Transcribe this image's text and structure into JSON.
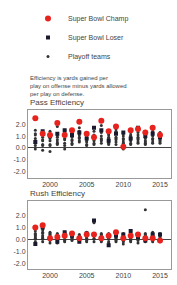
{
  "chart_data": [
    {
      "type": "scatter",
      "title": "Pass Efficiency",
      "legend": "top",
      "annotations": [
        "Efficiency is yards gained per\nplay on offense minus yards allowed\nper play on defense."
      ],
      "xlim": [
        1997.0,
        2016.5
      ],
      "xticks": [
        2000,
        2005,
        2010,
        2015
      ],
      "ylim": [
        -2.5,
        3.2
      ],
      "yticks": [
        {
          "value": -2.0,
          "label": "-2.0"
        },
        {
          "value": -1.0,
          "label": "-1.0"
        },
        {
          "value": 0.0,
          "label": "0.0"
        },
        {
          "value": 1.0,
          "label": "1.0"
        },
        {
          "value": 2.0,
          "label": "2.0"
        }
      ],
      "grid": false,
      "series": [
        {
          "name": "Playoff teams",
          "color": "#333333",
          "marker": "circle",
          "x": [
            1998,
            1998,
            1998,
            1998,
            1998,
            1998,
            1998,
            1998,
            1998,
            1999,
            1999,
            1999,
            1999,
            1999,
            1999,
            1999,
            1999,
            2000,
            2000,
            2000,
            2000,
            2000,
            2000,
            2000,
            2000,
            2001,
            2001,
            2001,
            2001,
            2001,
            2001,
            2001,
            2001,
            2002,
            2002,
            2002,
            2002,
            2002,
            2002,
            2002,
            2002,
            2003,
            2003,
            2003,
            2003,
            2003,
            2003,
            2003,
            2004,
            2004,
            2004,
            2004,
            2004,
            2004,
            2004,
            2004,
            2005,
            2005,
            2005,
            2005,
            2005,
            2005,
            2005,
            2005,
            2006,
            2006,
            2006,
            2006,
            2006,
            2006,
            2006,
            2007,
            2007,
            2007,
            2007,
            2007,
            2007,
            2007,
            2007,
            2008,
            2008,
            2008,
            2008,
            2008,
            2008,
            2008,
            2008,
            2009,
            2009,
            2009,
            2009,
            2009,
            2009,
            2009,
            2009,
            2010,
            2010,
            2010,
            2010,
            2010,
            2010,
            2010,
            2010,
            2011,
            2011,
            2011,
            2011,
            2011,
            2011,
            2011,
            2011,
            2012,
            2012,
            2012,
            2012,
            2012,
            2012,
            2012,
            2012,
            2013,
            2013,
            2013,
            2013,
            2013,
            2013,
            2013,
            2013,
            2014,
            2014,
            2014,
            2014,
            2014,
            2014,
            2014,
            2015,
            2015,
            2015,
            2015,
            2015,
            2015,
            2015,
            2015
          ],
          "values": [
            -0.1,
            0.2,
            0.4,
            0.5,
            0.6,
            0.8,
            1.1,
            1.2,
            1.5,
            -0.2,
            0.2,
            0.3,
            0.6,
            0.7,
            0.9,
            1.1,
            1.3,
            -0.3,
            0.2,
            0.3,
            0.6,
            0.8,
            0.9,
            1.1,
            1.4,
            0.3,
            0.4,
            0.5,
            0.7,
            0.9,
            1.0,
            1.2,
            1.8,
            -0.1,
            0.2,
            0.4,
            0.7,
            0.8,
            1.0,
            1.3,
            1.5,
            0.3,
            0.4,
            0.6,
            0.7,
            0.9,
            1.1,
            1.3,
            0.5,
            0.6,
            0.8,
            0.9,
            1.1,
            1.2,
            1.4,
            1.7,
            0.2,
            0.3,
            0.5,
            0.6,
            0.8,
            0.9,
            1.0,
            1.1,
            0.3,
            0.4,
            0.6,
            0.7,
            0.9,
            1.1,
            1.4,
            0.4,
            0.6,
            0.7,
            0.8,
            1.0,
            1.3,
            1.5,
            1.9,
            0.3,
            0.4,
            0.5,
            0.7,
            0.8,
            0.9,
            1.1,
            1.2,
            0.3,
            0.5,
            0.7,
            0.8,
            0.9,
            1.2,
            1.4,
            1.6,
            -0.1,
            0.2,
            0.4,
            0.5,
            0.7,
            0.8,
            1.0,
            1.2,
            0.3,
            0.4,
            0.6,
            0.7,
            0.9,
            1.0,
            1.1,
            1.3,
            0.4,
            0.5,
            0.7,
            0.8,
            0.9,
            1.1,
            1.3,
            1.5,
            0.3,
            0.4,
            0.5,
            0.6,
            0.8,
            0.9,
            1.1,
            1.2,
            0.4,
            0.5,
            0.7,
            0.8,
            1.0,
            1.2,
            1.4,
            0.4,
            0.5,
            0.6,
            0.7,
            0.8,
            0.9,
            1.1,
            1.3
          ]
        },
        {
          "name": "Super Bowl Loser",
          "color": "#1a1a2e",
          "marker": "square",
          "x": [
            1998,
            1999,
            2000,
            2001,
            2002,
            2003,
            2004,
            2005,
            2006,
            2007,
            2008,
            2009,
            2010,
            2011,
            2012,
            2013,
            2014,
            2015
          ],
          "values": [
            0.5,
            1.4,
            1.0,
            1.2,
            1.5,
            1.1,
            1.3,
            0.8,
            1.7,
            1.5,
            0.6,
            1.2,
            1.3,
            0.8,
            1.7,
            1.0,
            1.2,
            0.9
          ]
        },
        {
          "name": "Super Bowl Champ",
          "color": "#e8231e",
          "marker": "circle",
          "x": [
            1998,
            1999,
            2000,
            2001,
            2002,
            2003,
            2004,
            2005,
            2006,
            2007,
            2008,
            2009,
            2010,
            2011,
            2012,
            2013,
            2014,
            2015
          ],
          "values": [
            2.5,
            1.2,
            1.1,
            2.1,
            1.1,
            1.5,
            2.2,
            1.2,
            0.9,
            2.3,
            1.4,
            1.8,
            0.1,
            1.5,
            1.6,
            1.3,
            1.7,
            1.1
          ]
        }
      ]
    },
    {
      "type": "scatter",
      "title": "Rush Efficiency",
      "xlim": [
        1997.0,
        2016.5
      ],
      "xticks": [
        2000,
        2005,
        2010,
        2015
      ],
      "ylim": [
        -2.5,
        3.2
      ],
      "yticks": [
        {
          "value": -2.0,
          "label": "-2.0"
        },
        {
          "value": -1.0,
          "label": "-1.0"
        },
        {
          "value": 0.0,
          "label": "0.0"
        },
        {
          "value": 1.0,
          "label": "1.0"
        },
        {
          "value": 2.0,
          "label": "2.0"
        }
      ],
      "grid": false,
      "series": [
        {
          "name": "Playoff teams",
          "color": "#333333",
          "marker": "circle",
          "x": [
            1998,
            1998,
            1998,
            1998,
            1998,
            1998,
            1998,
            1998,
            1998,
            1999,
            1999,
            1999,
            1999,
            1999,
            1999,
            1999,
            1999,
            2000,
            2000,
            2000,
            2000,
            2000,
            2000,
            2000,
            2000,
            2001,
            2001,
            2001,
            2001,
            2001,
            2001,
            2001,
            2001,
            2002,
            2002,
            2002,
            2002,
            2002,
            2002,
            2002,
            2002,
            2003,
            2003,
            2003,
            2003,
            2003,
            2003,
            2003,
            2004,
            2004,
            2004,
            2004,
            2004,
            2004,
            2004,
            2005,
            2005,
            2005,
            2005,
            2005,
            2005,
            2005,
            2005,
            2006,
            2006,
            2006,
            2006,
            2006,
            2006,
            2006,
            2007,
            2007,
            2007,
            2007,
            2007,
            2007,
            2007,
            2007,
            2008,
            2008,
            2008,
            2008,
            2008,
            2008,
            2008,
            2008,
            2009,
            2009,
            2009,
            2009,
            2009,
            2009,
            2009,
            2010,
            2010,
            2010,
            2010,
            2010,
            2010,
            2010,
            2010,
            2011,
            2011,
            2011,
            2011,
            2011,
            2011,
            2011,
            2011,
            2012,
            2012,
            2012,
            2012,
            2012,
            2012,
            2012,
            2012,
            2013,
            2013,
            2013,
            2013,
            2013,
            2013,
            2013,
            2013,
            2014,
            2014,
            2014,
            2014,
            2014,
            2014,
            2014,
            2014,
            2015,
            2015,
            2015,
            2015,
            2015,
            2015,
            2015,
            2015
          ],
          "values": [
            -0.4,
            -0.2,
            0.0,
            0.1,
            0.2,
            0.3,
            0.4,
            0.5,
            0.7,
            -0.2,
            0.0,
            0.1,
            0.2,
            0.3,
            0.5,
            0.6,
            0.8,
            -0.3,
            -0.1,
            0.0,
            0.1,
            0.3,
            0.4,
            0.5,
            0.6,
            -0.3,
            -0.2,
            0.0,
            0.1,
            0.2,
            0.3,
            0.4,
            0.5,
            -0.2,
            -0.1,
            0.0,
            0.2,
            0.3,
            0.4,
            0.5,
            0.6,
            -0.1,
            0.0,
            0.1,
            0.2,
            0.3,
            0.4,
            0.5,
            -0.2,
            -0.1,
            0.0,
            0.1,
            0.2,
            0.3,
            0.4,
            -0.2,
            -0.1,
            0.1,
            0.2,
            0.3,
            0.4,
            0.5,
            0.6,
            -0.2,
            0.0,
            0.1,
            0.3,
            0.4,
            0.5,
            1.4,
            -0.2,
            -0.1,
            0.0,
            0.1,
            0.2,
            0.3,
            0.4,
            0.5,
            -0.3,
            -0.2,
            0.0,
            0.1,
            0.2,
            0.3,
            0.4,
            0.5,
            -0.2,
            -0.1,
            0.0,
            0.1,
            0.3,
            0.4,
            0.5,
            -0.4,
            -0.2,
            -0.1,
            0.0,
            0.1,
            0.3,
            0.4,
            0.5,
            -0.2,
            -0.1,
            0.0,
            0.1,
            0.2,
            0.3,
            0.4,
            0.5,
            -0.3,
            -0.1,
            0.0,
            0.1,
            0.2,
            0.3,
            0.4,
            0.5,
            -0.2,
            -0.1,
            0.0,
            0.2,
            0.3,
            0.4,
            0.5,
            2.5,
            -0.2,
            -0.1,
            0.0,
            0.1,
            0.3,
            0.4,
            0.5,
            0.6,
            -0.2,
            -0.1,
            0.0,
            0.1,
            0.2,
            0.3,
            0.4,
            0.5
          ]
        },
        {
          "name": "Super Bowl Loser",
          "color": "#1a1a2e",
          "marker": "square",
          "x": [
            1998,
            1999,
            2000,
            2001,
            2002,
            2003,
            2004,
            2005,
            2006,
            2007,
            2008,
            2009,
            2010,
            2011,
            2012,
            2013,
            2014,
            2015
          ],
          "values": [
            -0.4,
            1.0,
            0.1,
            -0.2,
            0.6,
            0.3,
            -0.2,
            0.5,
            1.6,
            0.1,
            -0.5,
            0.3,
            0.4,
            0.7,
            0.2,
            -0.1,
            0.4,
            0.4
          ]
        },
        {
          "name": "Super Bowl Champ",
          "color": "#e8231e",
          "marker": "circle",
          "x": [
            1998,
            1999,
            2000,
            2001,
            2002,
            2003,
            2004,
            2005,
            2006,
            2007,
            2008,
            2009,
            2010,
            2011,
            2012,
            2013,
            2014,
            2015
          ],
          "values": [
            1.0,
            1.2,
            0.1,
            0.2,
            0.3,
            0.5,
            0.1,
            0.4,
            0.4,
            0.1,
            0.3,
            0.6,
            0.1,
            0.3,
            0.4,
            0.1,
            0.1,
            -0.1
          ]
        }
      ]
    }
  ]
}
